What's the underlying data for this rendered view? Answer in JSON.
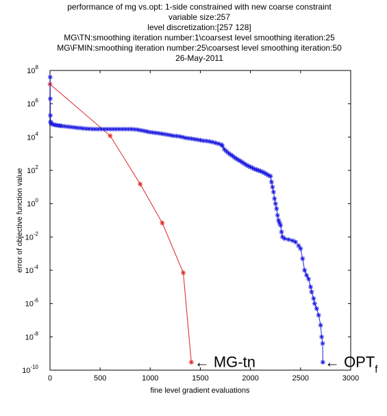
{
  "chart_data": {
    "type": "scatter",
    "title_lines": [
      "performance of mg vs.opt: 1-side constrained with new coarse constraint",
      "variable size:257",
      "level discretization:[257 128]",
      "MG\\TN:smoothing iteration number:1\\coarsest level smoothing iteration:25",
      "MG\\FMIN:smoothing iteration number:25\\coarsest level smoothing iteration:50",
      "26-May-2011"
    ],
    "xlabel": "fine level gradient evaluations",
    "ylabel": "error of objective function value",
    "xlim": [
      0,
      3000
    ],
    "ylim": [
      1e-10,
      100000000.0
    ],
    "yscale": "log",
    "x_ticks": [
      0,
      500,
      1000,
      1500,
      2000,
      2500,
      3000
    ],
    "x_tick_labels": [
      "0",
      "500",
      "1000",
      "1500",
      "2000",
      "2500",
      "3000"
    ],
    "y_tick_exponents": [
      8,
      6,
      4,
      2,
      0,
      -2,
      -4,
      -6,
      -8,
      -10
    ],
    "y_tick_mantissas": [
      "10",
      "10",
      "10",
      "10",
      "10",
      "10",
      "10",
      "10",
      "10",
      "10"
    ],
    "y_tick_exponent_labels": [
      "8",
      "6",
      "4",
      "2",
      "0",
      "-2",
      "-4",
      "-6",
      "-8",
      "-10"
    ],
    "grid": false,
    "series": [
      {
        "color": "#e02020",
        "marker": "*",
        "x": [
          0,
          600,
          900,
          1120,
          1330,
          1410
        ],
        "y": [
          15000000.0,
          12000.0,
          15,
          0.07,
          7e-05,
          3e-10
        ]
      },
      {
        "color": "#1a1ae0",
        "marker": "*",
        "points": [
          [
            2,
            40000000.0
          ],
          [
            3,
            2000000.0
          ],
          [
            4,
            200000.0
          ],
          [
            6,
            80000.0
          ],
          [
            10,
            70000.0
          ],
          [
            20,
            60000.0
          ],
          [
            40,
            55000.0
          ],
          [
            60,
            52000.0
          ],
          [
            80,
            50000.0
          ],
          [
            100,
            48000.0
          ],
          [
            120,
            46000.0
          ],
          [
            150,
            44000.0
          ],
          [
            180,
            42000.0
          ],
          [
            210,
            40000.0
          ],
          [
            240,
            38000.0
          ],
          [
            270,
            36000.0
          ],
          [
            300,
            35000.0
          ],
          [
            330,
            33000.0
          ],
          [
            360,
            32000.0
          ],
          [
            390,
            31000.0
          ],
          [
            420,
            30500.0
          ],
          [
            450,
            30000.0
          ],
          [
            480,
            30000.0
          ],
          [
            510,
            30000.0
          ],
          [
            540,
            30000.0
          ],
          [
            570,
            30000.0
          ],
          [
            600,
            30000.0
          ],
          [
            630,
            30000.0
          ],
          [
            660,
            30000.0
          ],
          [
            690,
            30000.0
          ],
          [
            720,
            30000.0
          ],
          [
            750,
            30000.0
          ],
          [
            780,
            30000.0
          ],
          [
            810,
            30000.0
          ],
          [
            840,
            29000.0
          ],
          [
            870,
            28000.0
          ],
          [
            900,
            26000.0
          ],
          [
            930,
            24000.0
          ],
          [
            960,
            22000.0
          ],
          [
            990,
            20000.0
          ],
          [
            1020,
            19000.0
          ],
          [
            1050,
            18000.0
          ],
          [
            1080,
            17000.0
          ],
          [
            1110,
            16000.0
          ],
          [
            1140,
            15000.0
          ],
          [
            1170,
            14000.0
          ],
          [
            1200,
            13000.0
          ],
          [
            1230,
            12000.0
          ],
          [
            1260,
            11500.0
          ],
          [
            1290,
            11000.0
          ],
          [
            1320,
            10000.0
          ],
          [
            1350,
            9000.0
          ],
          [
            1380,
            8500.0
          ],
          [
            1410,
            8000.0
          ],
          [
            1440,
            7500.0
          ],
          [
            1470,
            7000.0
          ],
          [
            1500,
            6500.0
          ],
          [
            1530,
            6000.0
          ],
          [
            1560,
            5800.0
          ],
          [
            1590,
            5500.0
          ],
          [
            1620,
            5000.0
          ],
          [
            1650,
            4500.0
          ],
          [
            1680,
            4000.0
          ],
          [
            1710,
            3500.0
          ],
          [
            1720,
            3000.0
          ],
          [
            1740,
            1800.0
          ],
          [
            1760,
            1400.0
          ],
          [
            1780,
            1100.0
          ],
          [
            1800,
            900
          ],
          [
            1820,
            750
          ],
          [
            1840,
            600
          ],
          [
            1860,
            500
          ],
          [
            1880,
            420
          ],
          [
            1900,
            360
          ],
          [
            1920,
            300
          ],
          [
            1940,
            250
          ],
          [
            1960,
            210
          ],
          [
            1980,
            180
          ],
          [
            2000,
            160
          ],
          [
            2020,
            140
          ],
          [
            2040,
            120
          ],
          [
            2060,
            110
          ],
          [
            2080,
            100
          ],
          [
            2100,
            90
          ],
          [
            2120,
            80
          ],
          [
            2140,
            70
          ],
          [
            2160,
            60
          ],
          [
            2180,
            50
          ],
          [
            2200,
            45
          ],
          [
            2210,
            20
          ],
          [
            2220,
            10
          ],
          [
            2230,
            5
          ],
          [
            2240,
            2
          ],
          [
            2250,
            1
          ],
          [
            2260,
            0.5
          ],
          [
            2270,
            0.2
          ],
          [
            2280,
            0.1
          ],
          [
            2290,
            0.07
          ],
          [
            2300,
            0.05
          ],
          [
            2310,
            0.02
          ],
          [
            2320,
            0.01
          ],
          [
            2340,
            0.008
          ],
          [
            2380,
            0.007
          ],
          [
            2420,
            0.006
          ],
          [
            2450,
            0.005
          ],
          [
            2480,
            0.003
          ],
          [
            2500,
            0.002
          ],
          [
            2520,
            0.0005
          ],
          [
            2540,
            0.0001
          ],
          [
            2560,
            5e-05
          ],
          [
            2580,
            3e-05
          ],
          [
            2600,
            1e-05
          ],
          [
            2610,
            5e-06
          ],
          [
            2630,
            2e-06
          ],
          [
            2640,
            1e-06
          ],
          [
            2660,
            5e-07
          ],
          [
            2680,
            2e-07
          ],
          [
            2700,
            5e-08
          ],
          [
            2710,
            1e-08
          ],
          [
            2720,
            4e-09
          ],
          [
            2722,
            3e-10
          ]
        ]
      }
    ],
    "annotations": [
      {
        "label_base": "← MG-tn",
        "label_sub": "",
        "x": 1440,
        "y": 3e-10,
        "size": "large"
      },
      {
        "label_base": "← OPT",
        "label_sub": "f",
        "x": 2740,
        "y": 3e-10,
        "size": "large"
      }
    ]
  }
}
